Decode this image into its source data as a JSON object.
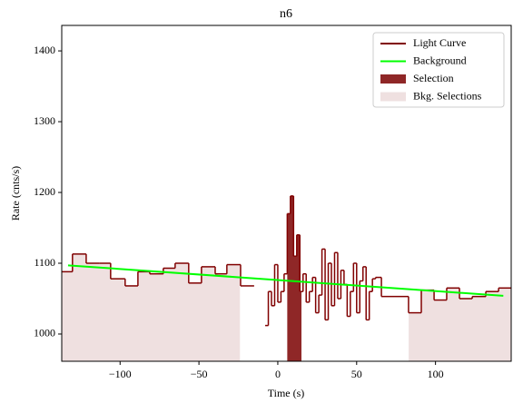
{
  "chart_data": {
    "type": "step",
    "title": "n6",
    "x_label": "Time (s)",
    "y_label": "Rate (cnts/s)",
    "xlim": [
      -137,
      148
    ],
    "ylim": [
      961.5,
      1436
    ],
    "xticks": [
      {
        "value": -100,
        "label": "−100"
      },
      {
        "value": -50,
        "label": "−50"
      },
      0,
      50,
      100
    ],
    "yticks": [
      1000,
      1100,
      1200,
      1300,
      1400
    ],
    "legend": "upper right",
    "series": [
      {
        "name": "Light Curve",
        "color": "#800000",
        "bins": [
          -137,
          -130.2,
          -121.5,
          -112.9,
          -106,
          -96.8,
          -88.7,
          -81.2,
          -72.6,
          -65.1,
          -56.5,
          -48.4,
          -39.7,
          -32.3,
          -23.6,
          -15,
          -8,
          -6,
          -4,
          -2,
          0,
          2,
          4,
          6,
          8,
          10,
          12,
          14,
          16,
          18,
          20,
          22,
          24,
          26,
          28,
          30,
          32,
          34,
          36,
          38,
          40,
          42,
          44,
          46,
          48,
          50,
          52,
          54,
          56,
          58,
          60,
          62,
          65.7,
          74.3,
          82.9,
          91,
          99.1,
          107.1,
          115.2,
          123.3,
          131.9,
          140,
          148
        ],
        "values": [
          1088,
          1113,
          1100,
          1100,
          1078,
          1068,
          1088,
          1085,
          1093,
          1100,
          1072,
          1095,
          1085,
          1098,
          1068,
          null,
          1012,
          1060,
          1040,
          1098,
          1045,
          1060,
          1085,
          1170,
          1195,
          1110,
          1140,
          1060,
          1085,
          1045,
          1060,
          1080,
          1030,
          1055,
          1120,
          1020,
          1100,
          1040,
          1115,
          1050,
          1090,
          1070,
          1025,
          1060,
          1100,
          1030,
          1075,
          1095,
          1020,
          1060,
          1078,
          1080,
          1053,
          1053,
          1030,
          1062,
          1048,
          1065,
          1050,
          1053,
          1060,
          1065
        ]
      },
      {
        "name": "Background",
        "color": "#00ff00",
        "x": [
          -133,
          143
        ],
        "values": [
          1097,
          1054
        ]
      },
      {
        "name": "Selection",
        "color": "#8f2727",
        "ranges": [
          [
            6,
            15
          ]
        ]
      },
      {
        "name": "Bkg. Selections",
        "color": "#efe0e0",
        "ranges": [
          [
            -137,
            -24
          ],
          [
            83,
            148
          ]
        ]
      }
    ]
  }
}
